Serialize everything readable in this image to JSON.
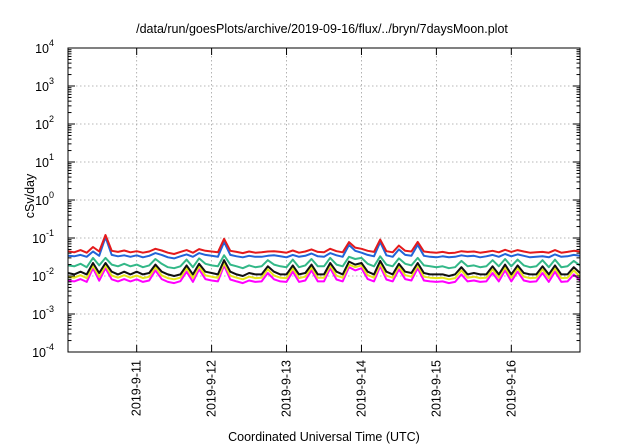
{
  "chart_data": {
    "type": "line",
    "title": "/data/run/goesPlots/archive/2019-09-16/flux/../bryn/7daysMoon.plot",
    "xlabel": "Coordinated Universal Time (UTC)",
    "ylabel": "cSv/day",
    "yscale": "log",
    "ylim": [
      0.0001,
      10000
    ],
    "xlim": [
      "2019-09-10 02:00",
      "2019-09-16 22:00"
    ],
    "grid": true,
    "x_ticks": [
      {
        "value": "2019-09-11 00:00",
        "label": "2019-9-11"
      },
      {
        "value": "2019-09-12 00:00",
        "label": "2019-9-12"
      },
      {
        "value": "2019-09-13 00:00",
        "label": "2019-9-13"
      },
      {
        "value": "2019-09-14 00:00",
        "label": "2019-9-14"
      },
      {
        "value": "2019-09-15 00:00",
        "label": "2019-9-15"
      },
      {
        "value": "2019-09-16 00:00",
        "label": "2019-9-16"
      }
    ],
    "y_ticks": [
      {
        "value": 0.0001,
        "base": "10",
        "exp": "-4"
      },
      {
        "value": 0.001,
        "base": "10",
        "exp": "-3"
      },
      {
        "value": 0.01,
        "base": "10",
        "exp": "-2"
      },
      {
        "value": 0.1,
        "base": "10",
        "exp": "-1"
      },
      {
        "value": 1,
        "base": "10",
        "exp": "0"
      },
      {
        "value": 10,
        "base": "10",
        "exp": "1"
      },
      {
        "value": 100,
        "base": "10",
        "exp": "2"
      },
      {
        "value": 1000,
        "base": "10",
        "exp": "3"
      },
      {
        "value": 10000,
        "base": "10",
        "exp": "4"
      }
    ],
    "x": [
      "2019-09-10 02:00",
      "2019-09-10 04:00",
      "2019-09-10 06:00",
      "2019-09-10 08:00",
      "2019-09-10 10:00",
      "2019-09-10 12:00",
      "2019-09-10 14:00",
      "2019-09-10 16:00",
      "2019-09-10 18:00",
      "2019-09-10 20:00",
      "2019-09-10 22:00",
      "2019-09-11 00:00",
      "2019-09-11 02:00",
      "2019-09-11 04:00",
      "2019-09-11 06:00",
      "2019-09-11 08:00",
      "2019-09-11 10:00",
      "2019-09-11 12:00",
      "2019-09-11 14:00",
      "2019-09-11 16:00",
      "2019-09-11 18:00",
      "2019-09-11 20:00",
      "2019-09-11 22:00",
      "2019-09-12 00:00",
      "2019-09-12 02:00",
      "2019-09-12 04:00",
      "2019-09-12 06:00",
      "2019-09-12 08:00",
      "2019-09-12 10:00",
      "2019-09-12 12:00",
      "2019-09-12 14:00",
      "2019-09-12 16:00",
      "2019-09-12 18:00",
      "2019-09-12 20:00",
      "2019-09-12 22:00",
      "2019-09-13 00:00",
      "2019-09-13 02:00",
      "2019-09-13 04:00",
      "2019-09-13 06:00",
      "2019-09-13 08:00",
      "2019-09-13 10:00",
      "2019-09-13 12:00",
      "2019-09-13 14:00",
      "2019-09-13 16:00",
      "2019-09-13 18:00",
      "2019-09-13 20:00",
      "2019-09-13 22:00",
      "2019-09-14 00:00",
      "2019-09-14 02:00",
      "2019-09-14 04:00",
      "2019-09-14 06:00",
      "2019-09-14 08:00",
      "2019-09-14 10:00",
      "2019-09-14 12:00",
      "2019-09-14 14:00",
      "2019-09-14 16:00",
      "2019-09-14 18:00",
      "2019-09-14 20:00",
      "2019-09-14 22:00",
      "2019-09-15 00:00",
      "2019-09-15 02:00",
      "2019-09-15 04:00",
      "2019-09-15 06:00",
      "2019-09-15 08:00",
      "2019-09-15 10:00",
      "2019-09-15 12:00",
      "2019-09-15 14:00",
      "2019-09-15 16:00",
      "2019-09-15 18:00",
      "2019-09-15 20:00",
      "2019-09-15 22:00",
      "2019-09-16 00:00",
      "2019-09-16 02:00",
      "2019-09-16 04:00",
      "2019-09-16 06:00",
      "2019-09-16 08:00",
      "2019-09-16 10:00",
      "2019-09-16 12:00",
      "2019-09-16 14:00",
      "2019-09-16 16:00",
      "2019-09-16 18:00",
      "2019-09-16 20:00",
      "2019-09-16 22:00"
    ],
    "series": [
      {
        "color": "#e41a1c",
        "values": [
          0.045,
          0.042,
          0.048,
          0.041,
          0.058,
          0.044,
          0.12,
          0.046,
          0.043,
          0.047,
          0.042,
          0.045,
          0.041,
          0.044,
          0.052,
          0.047,
          0.041,
          0.038,
          0.043,
          0.048,
          0.041,
          0.051,
          0.046,
          0.044,
          0.042,
          0.095,
          0.046,
          0.043,
          0.04,
          0.044,
          0.041,
          0.042,
          0.044,
          0.045,
          0.043,
          0.041,
          0.047,
          0.041,
          0.044,
          0.05,
          0.043,
          0.042,
          0.052,
          0.045,
          0.042,
          0.078,
          0.056,
          0.052,
          0.046,
          0.043,
          0.091,
          0.045,
          0.042,
          0.063,
          0.046,
          0.044,
          0.079,
          0.044,
          0.042,
          0.041,
          0.043,
          0.04,
          0.041,
          0.045,
          0.043,
          0.044,
          0.041,
          0.043,
          0.046,
          0.042,
          0.049,
          0.043,
          0.048,
          0.044,
          0.041,
          0.042,
          0.043,
          0.041,
          0.048,
          0.041,
          0.043,
          0.046,
          0.044
        ]
      },
      {
        "color": "#2264d8",
        "values": [
          0.034,
          0.033,
          0.036,
          0.032,
          0.044,
          0.034,
          0.105,
          0.036,
          0.033,
          0.035,
          0.032,
          0.035,
          0.031,
          0.034,
          0.04,
          0.036,
          0.031,
          0.029,
          0.033,
          0.037,
          0.032,
          0.04,
          0.036,
          0.034,
          0.032,
          0.078,
          0.036,
          0.033,
          0.031,
          0.034,
          0.032,
          0.032,
          0.034,
          0.035,
          0.033,
          0.031,
          0.036,
          0.032,
          0.034,
          0.039,
          0.033,
          0.032,
          0.04,
          0.035,
          0.032,
          0.066,
          0.046,
          0.041,
          0.036,
          0.033,
          0.078,
          0.035,
          0.032,
          0.05,
          0.036,
          0.034,
          0.066,
          0.034,
          0.032,
          0.031,
          0.033,
          0.031,
          0.032,
          0.035,
          0.033,
          0.034,
          0.031,
          0.033,
          0.036,
          0.032,
          0.038,
          0.033,
          0.037,
          0.034,
          0.031,
          0.032,
          0.033,
          0.031,
          0.037,
          0.032,
          0.033,
          0.036,
          0.034
        ]
      },
      {
        "color": "#33b888",
        "values": [
          0.019,
          0.018,
          0.021,
          0.017,
          0.03,
          0.019,
          0.03,
          0.02,
          0.018,
          0.021,
          0.018,
          0.02,
          0.017,
          0.019,
          0.028,
          0.021,
          0.017,
          0.016,
          0.018,
          0.027,
          0.017,
          0.029,
          0.021,
          0.019,
          0.018,
          0.035,
          0.02,
          0.018,
          0.016,
          0.019,
          0.017,
          0.018,
          0.026,
          0.02,
          0.018,
          0.017,
          0.027,
          0.017,
          0.019,
          0.028,
          0.018,
          0.018,
          0.03,
          0.02,
          0.018,
          0.032,
          0.028,
          0.03,
          0.021,
          0.018,
          0.033,
          0.02,
          0.018,
          0.029,
          0.021,
          0.019,
          0.03,
          0.019,
          0.018,
          0.017,
          0.018,
          0.016,
          0.017,
          0.025,
          0.018,
          0.019,
          0.017,
          0.018,
          0.026,
          0.018,
          0.028,
          0.018,
          0.027,
          0.019,
          0.017,
          0.018,
          0.026,
          0.017,
          0.027,
          0.017,
          0.018,
          0.025,
          0.019
        ]
      },
      {
        "color": "#111111",
        "values": [
          0.012,
          0.011,
          0.013,
          0.011,
          0.022,
          0.012,
          0.022,
          0.013,
          0.011,
          0.013,
          0.011,
          0.013,
          0.011,
          0.012,
          0.02,
          0.013,
          0.011,
          0.01,
          0.011,
          0.019,
          0.011,
          0.021,
          0.013,
          0.012,
          0.011,
          0.026,
          0.013,
          0.011,
          0.01,
          0.012,
          0.011,
          0.011,
          0.018,
          0.013,
          0.011,
          0.011,
          0.019,
          0.011,
          0.012,
          0.02,
          0.011,
          0.011,
          0.022,
          0.013,
          0.011,
          0.024,
          0.02,
          0.022,
          0.013,
          0.011,
          0.025,
          0.013,
          0.011,
          0.021,
          0.013,
          0.012,
          0.022,
          0.012,
          0.011,
          0.011,
          0.011,
          0.01,
          0.011,
          0.017,
          0.011,
          0.012,
          0.011,
          0.011,
          0.018,
          0.011,
          0.02,
          0.011,
          0.019,
          0.012,
          0.011,
          0.011,
          0.018,
          0.011,
          0.019,
          0.011,
          0.011,
          0.017,
          0.012
        ]
      },
      {
        "color": "#e6e619",
        "values": [
          0.0095,
          0.009,
          0.0105,
          0.0088,
          0.019,
          0.0095,
          0.019,
          0.0103,
          0.009,
          0.0105,
          0.009,
          0.0103,
          0.0088,
          0.0096,
          0.017,
          0.0104,
          0.0088,
          0.0082,
          0.0091,
          0.016,
          0.0088,
          0.018,
          0.0104,
          0.0096,
          0.009,
          0.022,
          0.0102,
          0.009,
          0.0082,
          0.0096,
          0.0088,
          0.009,
          0.015,
          0.0103,
          0.009,
          0.0088,
          0.016,
          0.0088,
          0.0096,
          0.017,
          0.009,
          0.009,
          0.019,
          0.0102,
          0.009,
          0.02,
          0.017,
          0.019,
          0.0105,
          0.009,
          0.021,
          0.0102,
          0.009,
          0.018,
          0.0105,
          0.0096,
          0.019,
          0.0096,
          0.009,
          0.0088,
          0.009,
          0.0082,
          0.0088,
          0.014,
          0.009,
          0.0096,
          0.0088,
          0.009,
          0.015,
          0.009,
          0.017,
          0.009,
          0.016,
          0.0096,
          0.0088,
          0.009,
          0.015,
          0.0088,
          0.016,
          0.0088,
          0.009,
          0.014,
          0.0096
        ]
      },
      {
        "color": "#ff00ff",
        "values": [
          0.0075,
          0.0072,
          0.0083,
          0.007,
          0.016,
          0.0075,
          0.016,
          0.0082,
          0.0072,
          0.0083,
          0.0072,
          0.0082,
          0.007,
          0.0076,
          0.014,
          0.0083,
          0.007,
          0.0065,
          0.0073,
          0.013,
          0.007,
          0.015,
          0.0083,
          0.0076,
          0.0072,
          0.019,
          0.0081,
          0.0072,
          0.0065,
          0.0076,
          0.007,
          0.0072,
          0.012,
          0.0082,
          0.0072,
          0.007,
          0.013,
          0.007,
          0.0076,
          0.014,
          0.0072,
          0.0072,
          0.016,
          0.0081,
          0.0072,
          0.017,
          0.014,
          0.016,
          0.0083,
          0.0072,
          0.018,
          0.0081,
          0.0072,
          0.015,
          0.0083,
          0.0076,
          0.016,
          0.0076,
          0.0072,
          0.007,
          0.0072,
          0.0065,
          0.007,
          0.011,
          0.0072,
          0.0076,
          0.007,
          0.0072,
          0.012,
          0.0072,
          0.014,
          0.0072,
          0.013,
          0.0076,
          0.007,
          0.0072,
          0.012,
          0.007,
          0.013,
          0.007,
          0.0072,
          0.011,
          0.0076
        ]
      }
    ]
  }
}
